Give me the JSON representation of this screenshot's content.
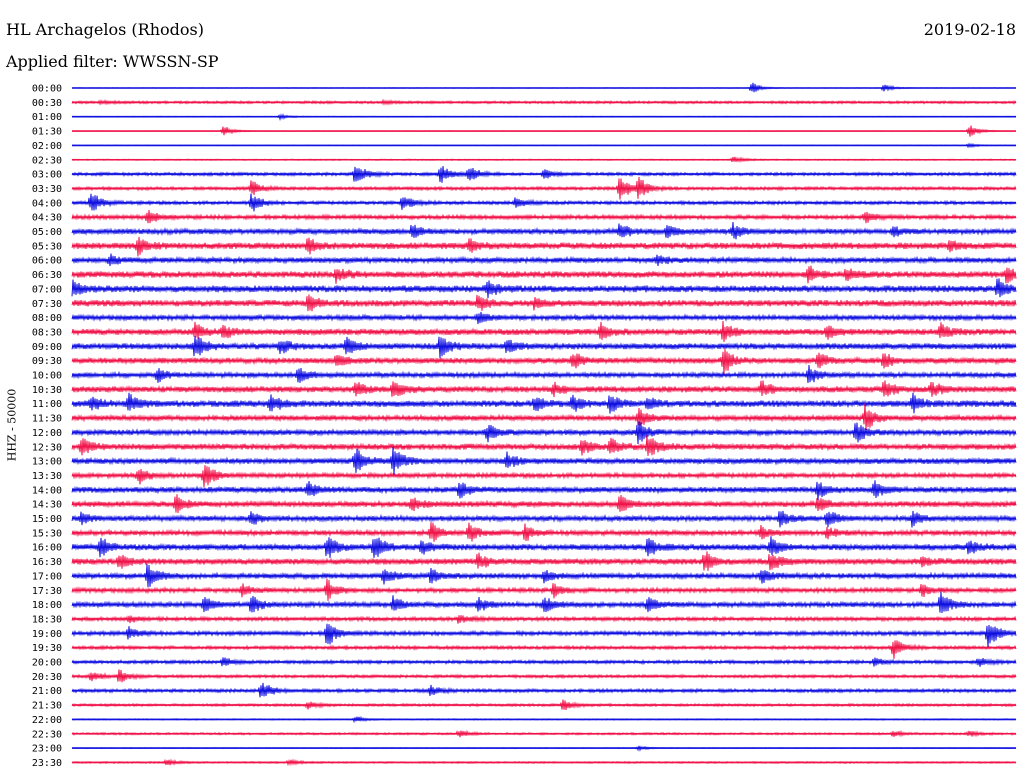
{
  "header": {
    "station": "HL Archagelos (Rhodos)",
    "date": "2019-02-18",
    "filter": "Applied filter: WWSSN-SP"
  },
  "axis": {
    "ylabel": "HHZ - 50000"
  },
  "colors": {
    "even_trace": "#1010e0",
    "odd_trace": "#f0144a",
    "text": "#000000"
  },
  "chart_data": {
    "type": "line",
    "title": "HL Archagelos (Rhodos)",
    "date": "2019-02-18",
    "ylabel": "HHZ - 50000",
    "categories": [
      "00:00",
      "00:30",
      "01:00",
      "01:30",
      "02:00",
      "02:30",
      "03:00",
      "03:30",
      "04:00",
      "04:30",
      "05:00",
      "05:30",
      "06:00",
      "06:30",
      "07:00",
      "07:30",
      "08:00",
      "08:30",
      "09:00",
      "09:30",
      "10:00",
      "10:30",
      "11:00",
      "11:30",
      "12:00",
      "12:30",
      "13:00",
      "13:30",
      "14:00",
      "14:30",
      "15:00",
      "15:30",
      "16:00",
      "16:30",
      "17:00",
      "17:30",
      "18:00",
      "18:30",
      "19:00",
      "19:30",
      "20:00",
      "20:30",
      "21:00",
      "21:30",
      "22:00",
      "22:30",
      "23:00",
      "23:30"
    ],
    "noise_level": [
      0.3,
      1.2,
      0.4,
      0.3,
      0.3,
      0.6,
      1.5,
      1.5,
      1.6,
      2.0,
      2.6,
      3.2,
      2.6,
      3.2,
      3.4,
      3.2,
      2.4,
      3.0,
      3.0,
      2.8,
      2.4,
      3.0,
      3.2,
      2.6,
      2.6,
      3.0,
      2.8,
      2.2,
      2.8,
      2.8,
      2.6,
      2.4,
      3.0,
      3.0,
      2.6,
      2.2,
      2.4,
      1.8,
      2.0,
      1.6,
      1.6,
      1.4,
      1.6,
      1.2,
      0.6,
      1.0,
      0.4,
      0.8
    ],
    "events": [
      [
        [
          0.72,
          6
        ],
        [
          0.86,
          4
        ]
      ],
      [
        [
          0.03,
          1.5
        ],
        [
          0.33,
          1.5
        ]
      ],
      [
        [
          0.22,
          2.5
        ]
      ],
      [
        [
          0.16,
          6
        ],
        [
          0.95,
          7
        ]
      ],
      [
        [
          0.95,
          2
        ]
      ],
      [
        [
          0.7,
          4
        ]
      ],
      [
        [
          0.3,
          14
        ],
        [
          0.39,
          10
        ],
        [
          0.42,
          9
        ],
        [
          0.5,
          6
        ]
      ],
      [
        [
          0.19,
          8
        ],
        [
          0.58,
          14
        ],
        [
          0.6,
          11
        ]
      ],
      [
        [
          0.02,
          12
        ],
        [
          0.19,
          10
        ],
        [
          0.35,
          9
        ],
        [
          0.47,
          6
        ]
      ],
      [
        [
          0.08,
          8
        ],
        [
          0.84,
          7
        ]
      ],
      [
        [
          0.36,
          8
        ],
        [
          0.58,
          8
        ],
        [
          0.63,
          7
        ],
        [
          0.7,
          8
        ],
        [
          0.87,
          5
        ]
      ],
      [
        [
          0.07,
          9
        ],
        [
          0.25,
          8
        ],
        [
          0.42,
          7
        ],
        [
          0.93,
          5
        ]
      ],
      [
        [
          0.04,
          5
        ],
        [
          0.62,
          5
        ]
      ],
      [
        [
          0.28,
          8
        ],
        [
          0.78,
          8
        ],
        [
          0.82,
          7
        ],
        [
          0.99,
          9
        ]
      ],
      [
        [
          0.0,
          9
        ],
        [
          0.44,
          9
        ],
        [
          0.98,
          10
        ]
      ],
      [
        [
          0.25,
          9
        ],
        [
          0.43,
          8
        ],
        [
          0.49,
          6
        ]
      ],
      [
        [
          0.43,
          8
        ]
      ],
      [
        [
          0.13,
          8
        ],
        [
          0.16,
          7
        ],
        [
          0.56,
          8
        ],
        [
          0.69,
          10
        ],
        [
          0.8,
          7
        ],
        [
          0.92,
          9
        ]
      ],
      [
        [
          0.13,
          14
        ],
        [
          0.22,
          8
        ],
        [
          0.29,
          10
        ],
        [
          0.39,
          12
        ],
        [
          0.46,
          7
        ]
      ],
      [
        [
          0.28,
          7
        ],
        [
          0.53,
          10
        ],
        [
          0.69,
          14
        ],
        [
          0.79,
          8
        ],
        [
          0.86,
          8
        ]
      ],
      [
        [
          0.09,
          8
        ],
        [
          0.24,
          8
        ],
        [
          0.78,
          10
        ]
      ],
      [
        [
          0.3,
          9
        ],
        [
          0.34,
          10
        ],
        [
          0.51,
          6
        ],
        [
          0.73,
          8
        ],
        [
          0.86,
          9
        ],
        [
          0.91,
          8
        ]
      ],
      [
        [
          0.02,
          7
        ],
        [
          0.06,
          10
        ],
        [
          0.21,
          10
        ],
        [
          0.49,
          7
        ],
        [
          0.53,
          8
        ],
        [
          0.57,
          9
        ],
        [
          0.61,
          6
        ],
        [
          0.89,
          9
        ]
      ],
      [
        [
          0.6,
          11
        ],
        [
          0.84,
          14
        ]
      ],
      [
        [
          0.44,
          9
        ],
        [
          0.6,
          12
        ],
        [
          0.83,
          12
        ]
      ],
      [
        [
          0.01,
          11
        ],
        [
          0.61,
          14
        ],
        [
          0.54,
          7
        ],
        [
          0.57,
          8
        ]
      ],
      [
        [
          0.3,
          14
        ],
        [
          0.34,
          15
        ],
        [
          0.46,
          9
        ]
      ],
      [
        [
          0.07,
          10
        ],
        [
          0.14,
          15
        ]
      ],
      [
        [
          0.25,
          9
        ],
        [
          0.41,
          10
        ],
        [
          0.79,
          10
        ],
        [
          0.85,
          9
        ]
      ],
      [
        [
          0.11,
          10
        ],
        [
          0.36,
          7
        ],
        [
          0.58,
          9
        ],
        [
          0.79,
          7
        ]
      ],
      [
        [
          0.01,
          6
        ],
        [
          0.19,
          7
        ],
        [
          0.75,
          9
        ],
        [
          0.8,
          9
        ],
        [
          0.89,
          8
        ]
      ],
      [
        [
          0.38,
          11
        ],
        [
          0.42,
          10
        ],
        [
          0.48,
          8
        ],
        [
          0.73,
          7
        ],
        [
          0.8,
          6
        ]
      ],
      [
        [
          0.03,
          10
        ],
        [
          0.27,
          12
        ],
        [
          0.32,
          14
        ],
        [
          0.37,
          8
        ],
        [
          0.61,
          9
        ],
        [
          0.74,
          10
        ],
        [
          0.95,
          9
        ]
      ],
      [
        [
          0.05,
          8
        ],
        [
          0.43,
          8
        ],
        [
          0.67,
          11
        ],
        [
          0.74,
          10
        ],
        [
          0.9,
          6
        ]
      ],
      [
        [
          0.08,
          12
        ],
        [
          0.33,
          9
        ],
        [
          0.38,
          8
        ],
        [
          0.5,
          7
        ],
        [
          0.73,
          8
        ]
      ],
      [
        [
          0.18,
          6
        ],
        [
          0.27,
          11
        ],
        [
          0.51,
          7
        ],
        [
          0.9,
          7
        ]
      ],
      [
        [
          0.14,
          9
        ],
        [
          0.19,
          9
        ],
        [
          0.34,
          8
        ],
        [
          0.43,
          8
        ],
        [
          0.5,
          9
        ],
        [
          0.61,
          8
        ],
        [
          0.92,
          14
        ]
      ],
      [
        [
          0.06,
          4
        ],
        [
          0.41,
          5
        ]
      ],
      [
        [
          0.06,
          6
        ],
        [
          0.27,
          14
        ],
        [
          0.97,
          16
        ]
      ],
      [
        [
          0.87,
          12
        ]
      ],
      [
        [
          0.16,
          5
        ],
        [
          0.85,
          4
        ],
        [
          0.96,
          5
        ]
      ],
      [
        [
          0.02,
          5
        ],
        [
          0.05,
          7
        ]
      ],
      [
        [
          0.2,
          11
        ],
        [
          0.38,
          5
        ]
      ],
      [
        [
          0.25,
          4
        ],
        [
          0.52,
          7
        ]
      ],
      [
        [
          0.3,
          3
        ]
      ],
      [
        [
          0.41,
          4
        ],
        [
          0.87,
          3
        ],
        [
          0.95,
          3
        ]
      ],
      [
        [
          0.6,
          2
        ]
      ],
      [
        [
          0.1,
          3
        ],
        [
          0.23,
          3
        ]
      ]
    ]
  }
}
